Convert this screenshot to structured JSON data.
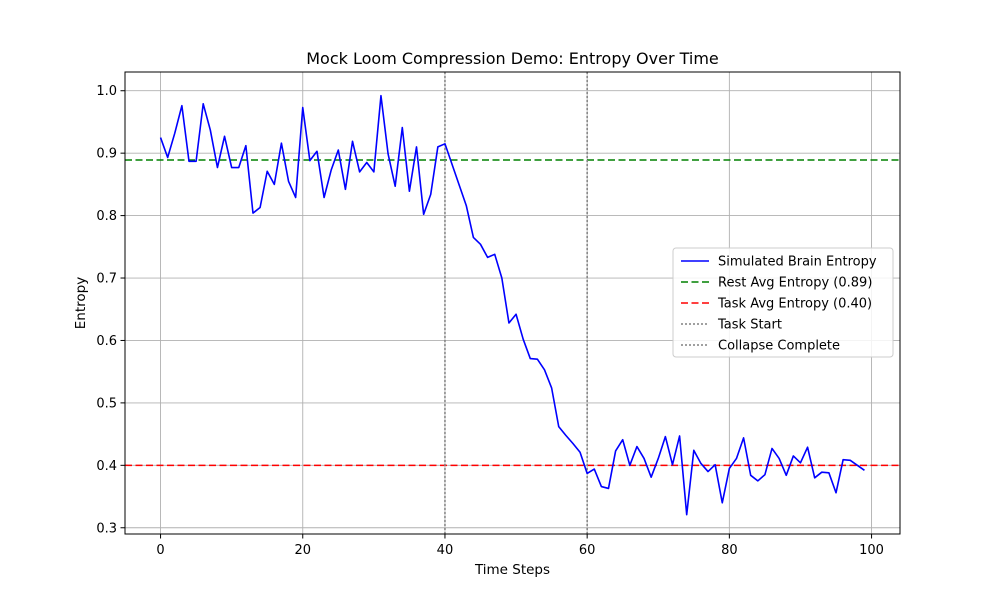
{
  "chart_data": {
    "type": "line",
    "title": "Mock Loom Compression Demo: Entropy Over Time",
    "xlabel": "Time Steps",
    "ylabel": "Entropy",
    "xlim": [
      -5,
      104
    ],
    "ylim": [
      0.29,
      1.03
    ],
    "xticks": [
      0,
      20,
      40,
      60,
      80,
      100
    ],
    "xtick_labels": [
      "0",
      "20",
      "40",
      "60",
      "80",
      "100"
    ],
    "yticks": [
      0.3,
      0.4,
      0.5,
      0.6,
      0.7,
      0.8,
      0.9,
      1.0
    ],
    "ytick_labels": [
      "0.3",
      "0.4",
      "0.5",
      "0.6",
      "0.7",
      "0.8",
      "0.9",
      "1.0"
    ],
    "grid": true,
    "legend_position": "center-right",
    "series": [
      {
        "name": "Simulated Brain Entropy",
        "color": "#0000ff",
        "style": "solid",
        "x": [
          0,
          1,
          2,
          3,
          4,
          5,
          6,
          7,
          8,
          9,
          10,
          11,
          12,
          13,
          14,
          15,
          16,
          17,
          18,
          19,
          20,
          21,
          22,
          23,
          24,
          25,
          26,
          27,
          28,
          29,
          30,
          31,
          32,
          33,
          34,
          35,
          36,
          37,
          38,
          39,
          40,
          41,
          42,
          43,
          44,
          45,
          46,
          47,
          48,
          49,
          50,
          51,
          52,
          53,
          54,
          55,
          56,
          57,
          58,
          59,
          60,
          61,
          62,
          63,
          64,
          65,
          66,
          67,
          68,
          69,
          70,
          71,
          72,
          73,
          74,
          75,
          76,
          77,
          78,
          79,
          80,
          81,
          82,
          83,
          84,
          85,
          86,
          87,
          88,
          89,
          90,
          91,
          92,
          93,
          94,
          95,
          96,
          97,
          98,
          99
        ],
        "y": [
          0.925,
          0.893,
          0.932,
          0.976,
          0.887,
          0.887,
          0.979,
          0.937,
          0.877,
          0.927,
          0.877,
          0.877,
          0.912,
          0.804,
          0.813,
          0.871,
          0.85,
          0.916,
          0.855,
          0.829,
          0.973,
          0.888,
          0.903,
          0.829,
          0.873,
          0.905,
          0.842,
          0.919,
          0.87,
          0.885,
          0.87,
          0.992,
          0.899,
          0.847,
          0.941,
          0.839,
          0.91,
          0.802,
          0.834,
          0.91,
          0.915,
          0.882,
          0.849,
          0.816,
          0.765,
          0.754,
          0.733,
          0.738,
          0.7,
          0.628,
          0.642,
          0.602,
          0.571,
          0.57,
          0.553,
          0.524,
          0.462,
          0.448,
          0.435,
          0.421,
          0.387,
          0.394,
          0.366,
          0.363,
          0.423,
          0.441,
          0.4,
          0.43,
          0.411,
          0.381,
          0.411,
          0.446,
          0.401,
          0.447,
          0.321,
          0.424,
          0.403,
          0.39,
          0.401,
          0.34,
          0.395,
          0.411,
          0.444,
          0.384,
          0.375,
          0.385,
          0.427,
          0.411,
          0.384,
          0.415,
          0.404,
          0.429,
          0.38,
          0.389,
          0.388,
          0.356,
          0.409,
          0.408,
          0.4,
          0.392
        ]
      },
      {
        "name": "Rest Avg Entropy (0.89)",
        "color": "#008000",
        "style": "dashed",
        "kind": "hline",
        "y": 0.889
      },
      {
        "name": "Task Avg Entropy (0.40)",
        "color": "#ff0000",
        "style": "dashed",
        "kind": "hline",
        "y": 0.4
      },
      {
        "name": "Task Start",
        "color": "#808080",
        "style": "dotted",
        "kind": "vline",
        "x": 40
      },
      {
        "name": "Collapse Complete",
        "color": "#808080",
        "style": "dotted",
        "kind": "vline",
        "x": 60
      }
    ]
  }
}
